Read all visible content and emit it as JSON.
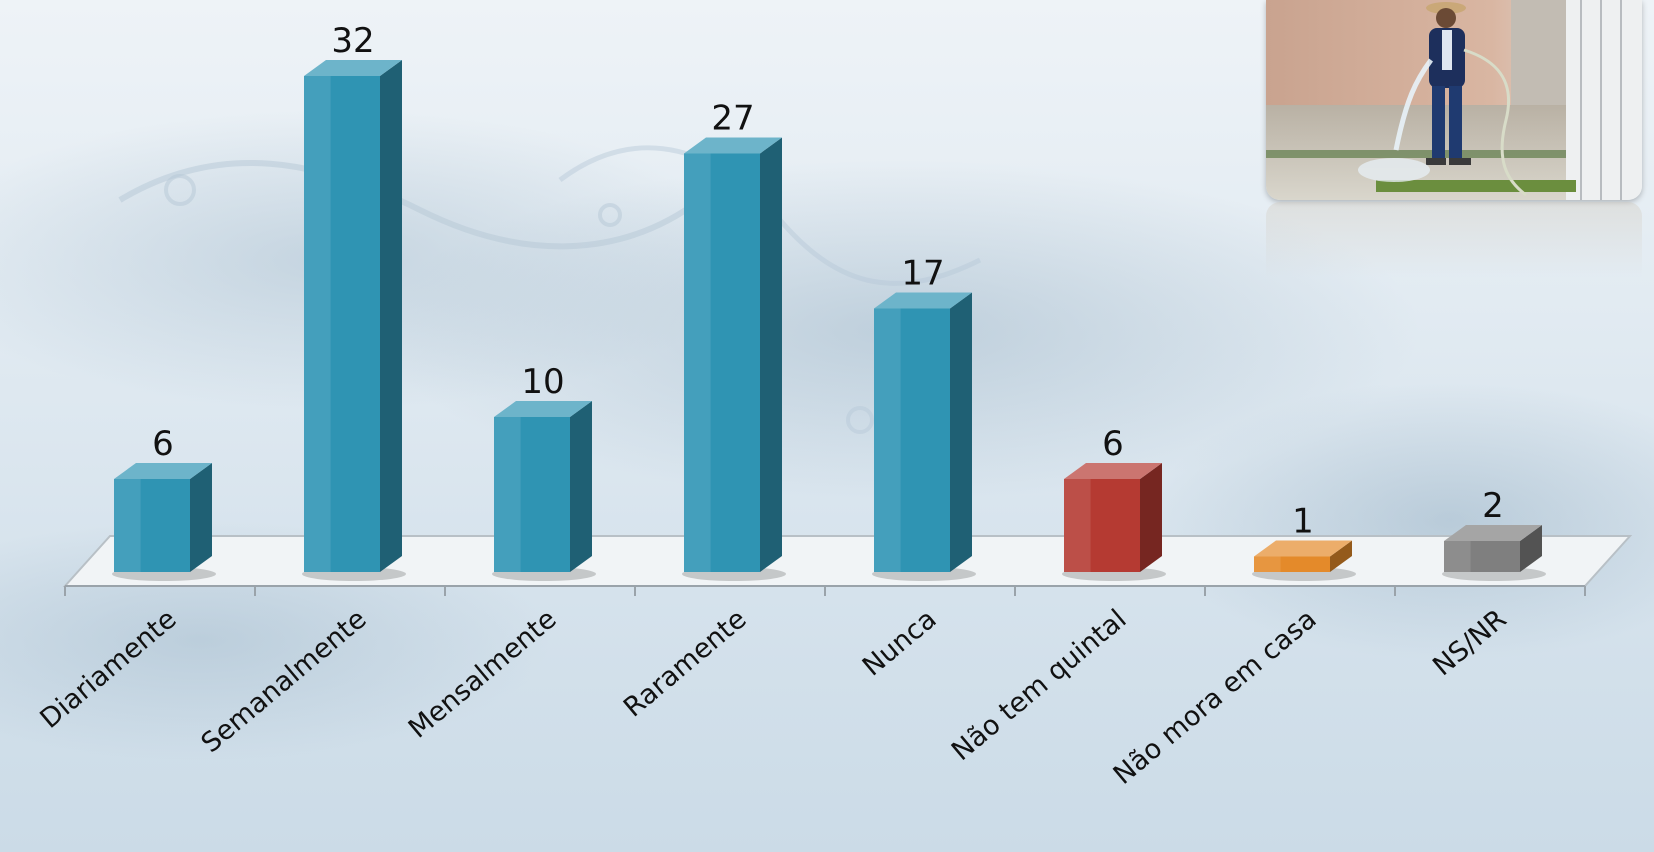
{
  "chart_data": {
    "type": "bar",
    "categories": [
      "Diariamente",
      "Semanalmente",
      "Mensalmente",
      "Raramente",
      "Nunca",
      "Não tem quintal",
      "Não mora em casa",
      "NS/NR"
    ],
    "values": [
      6,
      32,
      10,
      27,
      17,
      6,
      1,
      2
    ],
    "colors": [
      "#2f94b3",
      "#2f94b3",
      "#2f94b3",
      "#2f94b3",
      "#2f94b3",
      "#b53a32",
      "#e48a2a",
      "#7f7f7f"
    ],
    "style": "3d-columns",
    "data_labels": true,
    "gridlines": false,
    "legend": "none",
    "title": "",
    "xlabel": "",
    "ylabel": ""
  }
}
